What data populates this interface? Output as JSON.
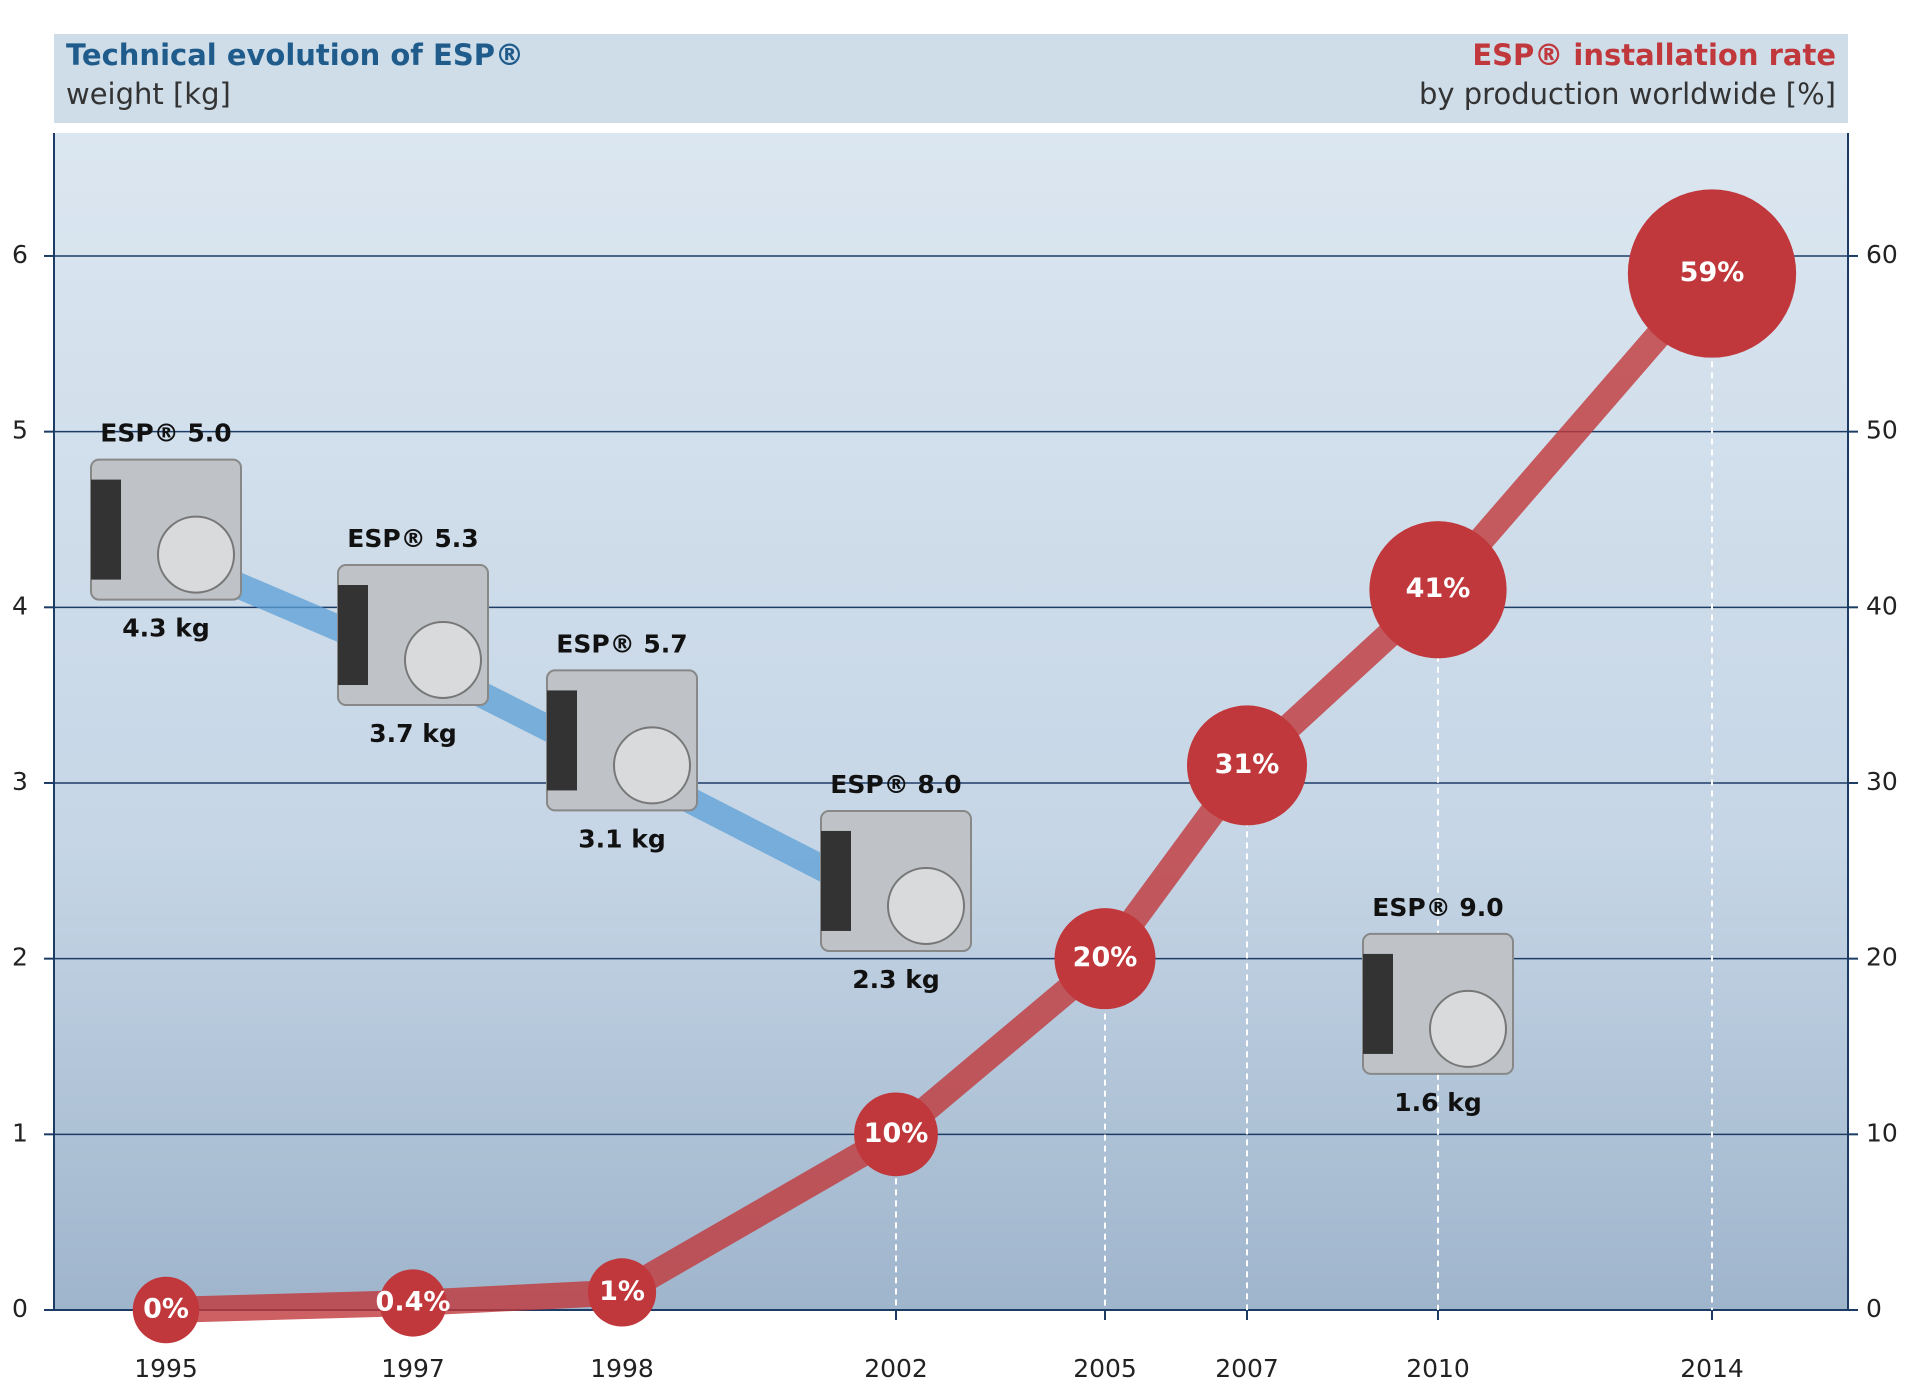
{
  "chart_data": {
    "type": "dual-line-bubble",
    "left_title": "Technical evolution of ESP®",
    "left_label": "weight [kg]",
    "right_title": "ESP® installation rate",
    "right_label": "by production worldwide [%]",
    "categories": [
      "1995",
      "1997",
      "1998",
      "2002",
      "2005",
      "2007",
      "2010",
      "2014"
    ],
    "products": [
      "ESP® 5.0",
      "ESP® 5.3",
      "ESP® 5.7",
      "ESP® 8.0",
      null,
      null,
      "ESP® 9.0",
      null
    ],
    "series": [
      {
        "name": null,
        "color": "#5b9fd6",
        "axis": "y",
        "values": [
          4.3,
          3.7,
          3.1,
          2.3,
          null,
          null,
          1.6,
          null
        ],
        "value_labels": [
          "4.3 kg",
          "3.7 kg",
          "3.1 kg",
          "2.3 kg",
          null,
          null,
          "1.6 kg",
          null
        ]
      },
      {
        "name": null,
        "color": "#c0383b",
        "axis": "y2",
        "values": [
          0,
          0.4,
          1,
          10,
          20,
          31,
          41,
          59
        ],
        "value_labels": [
          "0%",
          "0.4%",
          "1%",
          "10%",
          "20%",
          "31%",
          "41%",
          "59%"
        ]
      }
    ],
    "ylim": [
      0,
      6.7
    ],
    "yticks": [
      0,
      1,
      2,
      3,
      4,
      5,
      6
    ],
    "y2lim": [
      0,
      67
    ],
    "y2ticks": [
      0,
      10,
      20,
      30,
      40,
      50,
      60
    ],
    "grid": true
  }
}
